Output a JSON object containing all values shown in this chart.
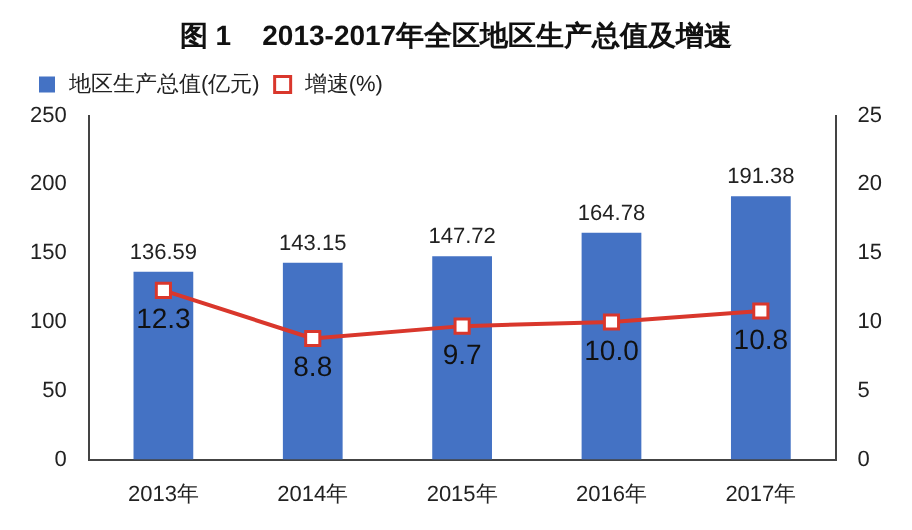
{
  "chart_data": {
    "type": "bar",
    "title": "图 1    2013-2017年全区地区生产总值及增速",
    "categories": [
      "2013年",
      "2014年",
      "2015年",
      "2016年",
      "2017年"
    ],
    "series": [
      {
        "name": "地区生产总值(亿元)",
        "color": "#4472c4",
        "values": [
          136.59,
          143.15,
          147.72,
          164.78,
          191.38
        ],
        "value_labels": [
          "136.59",
          "143.15",
          "147.72",
          "164.78",
          "191.38"
        ]
      },
      {
        "name": "增速(%)",
        "type": "line",
        "axis": "y2",
        "color": "#d9372c",
        "marker": "square",
        "values": [
          12.3,
          8.8,
          9.7,
          10.0,
          10.8
        ],
        "value_labels": [
          "12.3",
          "8.8",
          "9.7",
          "10.0",
          "10.8"
        ]
      }
    ],
    "ylim": [
      0,
      250
    ],
    "yticks": [
      0,
      50,
      100,
      150,
      200,
      250
    ],
    "y2lim": [
      0,
      25
    ],
    "y2ticks": [
      0,
      5,
      10,
      15,
      20,
      25
    ],
    "grid": false,
    "legend": "top left"
  }
}
